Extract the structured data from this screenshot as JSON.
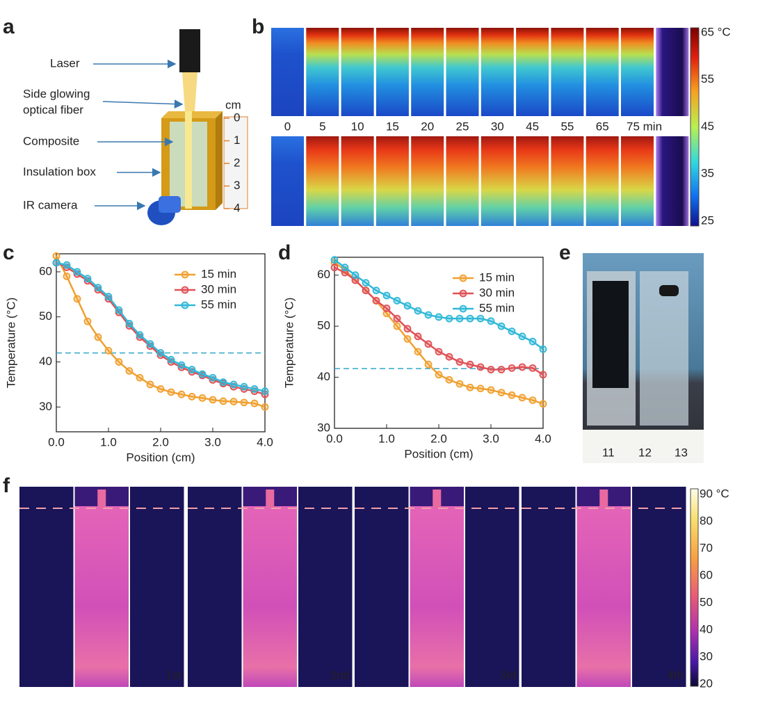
{
  "figure": {
    "panels": [
      "a",
      "b",
      "c",
      "d",
      "e",
      "f"
    ]
  },
  "panel_a": {
    "labels": [
      "Laser",
      "Side glowing",
      "optical fiber",
      "Composite",
      "Insulation box",
      "IR camera"
    ],
    "scale_unit": "cm",
    "scale_labels": [
      "0",
      "1",
      "2",
      "3",
      "4"
    ]
  },
  "panel_b": {
    "times": [
      "0",
      "5",
      "10",
      "15",
      "20",
      "25",
      "30",
      "45",
      "55",
      "65",
      "75 min"
    ],
    "colorbar": [
      "65 °C",
      "55",
      "45",
      "35",
      "25"
    ]
  },
  "chart_data": [
    {
      "type": "line",
      "xlabel": "Position (cm)",
      "ylabel": "Temperature (°C)",
      "x": [
        0,
        0.2,
        0.4,
        0.6,
        0.8,
        1.0,
        1.2,
        1.4,
        1.6,
        1.8,
        2.0,
        2.2,
        2.4,
        2.6,
        2.8,
        3.0,
        3.2,
        3.4,
        3.6,
        3.8,
        4.0
      ],
      "series": [
        {
          "name": "15 min",
          "color": "#f0a030",
          "values": [
            63.5,
            59,
            54,
            49,
            45.5,
            42.5,
            40,
            38,
            36.5,
            35,
            34,
            33.3,
            32.8,
            32.3,
            32,
            31.6,
            31.3,
            31.2,
            31,
            30.8,
            30
          ]
        },
        {
          "name": "30 min",
          "color": "#e05055",
          "values": [
            62,
            61,
            59.5,
            58,
            56,
            54,
            51,
            48,
            45.5,
            43.5,
            41.5,
            40,
            38.8,
            37.8,
            37,
            36,
            35.2,
            34.5,
            34,
            33.5,
            32.8
          ]
        },
        {
          "name": "55 min",
          "color": "#30b8d8",
          "values": [
            62,
            61.5,
            60,
            58.5,
            56.5,
            54.5,
            51.5,
            48.5,
            46,
            44,
            42,
            40.5,
            39.3,
            38.3,
            37.3,
            36.5,
            35.5,
            35,
            34.5,
            34,
            33.5
          ]
        }
      ],
      "reference_line": 42,
      "xlim": [
        0,
        4
      ],
      "ylim": [
        24.5,
        64
      ],
      "xticks": [
        {
          "value": 0,
          "label": "0.0"
        },
        {
          "value": 1,
          "label": "1.0"
        },
        {
          "value": 2,
          "label": "2.0"
        },
        {
          "value": 3,
          "label": "3.0"
        },
        {
          "value": 4,
          "label": "4.0"
        }
      ],
      "yticks": [
        30,
        40,
        50,
        60
      ],
      "legend": "upper right"
    },
    {
      "type": "line",
      "xlabel": "Position (cm)",
      "ylabel": "Temperature (°C)",
      "x": [
        0,
        0.2,
        0.4,
        0.6,
        0.8,
        1.0,
        1.2,
        1.4,
        1.6,
        1.8,
        2.0,
        2.2,
        2.4,
        2.6,
        2.8,
        3.0,
        3.2,
        3.4,
        3.6,
        3.8,
        4.0
      ],
      "series": [
        {
          "name": "15 min",
          "color": "#f0a030",
          "values": [
            62.5,
            61,
            59,
            57,
            55,
            52.5,
            50,
            47.5,
            45,
            42.5,
            40.5,
            39.5,
            38.7,
            38,
            37.8,
            37.5,
            37,
            36.5,
            36,
            35.5,
            34.8
          ]
        },
        {
          "name": "30 min",
          "color": "#e05055",
          "values": [
            61.5,
            60.5,
            59,
            57,
            55,
            53.5,
            51.5,
            49.5,
            48,
            46.5,
            45,
            44,
            43,
            42.5,
            42,
            41.5,
            41.5,
            41.8,
            42,
            41.8,
            40.5
          ]
        },
        {
          "name": "55 min",
          "color": "#30b8d8",
          "values": [
            63,
            61.5,
            60,
            58.5,
            57,
            56,
            55,
            54,
            53,
            52.2,
            51.8,
            51.5,
            51.5,
            51.5,
            51.5,
            51,
            50,
            49,
            48,
            47,
            45.5
          ]
        }
      ],
      "reference_line": 41.7,
      "xlim": [
        0,
        4
      ],
      "ylim": [
        30,
        63.5
      ],
      "xticks": [
        {
          "value": 0,
          "label": "0.0"
        },
        {
          "value": 1,
          "label": "1.0"
        },
        {
          "value": 2,
          "label": "2.0"
        },
        {
          "value": 3,
          "label": "3.0"
        },
        {
          "value": 4,
          "label": "4.0"
        }
      ],
      "yticks": [
        30,
        40,
        50,
        60
      ],
      "legend": "upper right"
    }
  ],
  "panel_e": {
    "ruler": [
      "11",
      "12",
      "13"
    ]
  },
  "panel_f": {
    "cycles": [
      "1st",
      "2nd",
      "3rd",
      "4th"
    ],
    "colorbar": [
      "90 °C",
      "80",
      "70",
      "60",
      "50",
      "40",
      "30",
      "20"
    ]
  }
}
